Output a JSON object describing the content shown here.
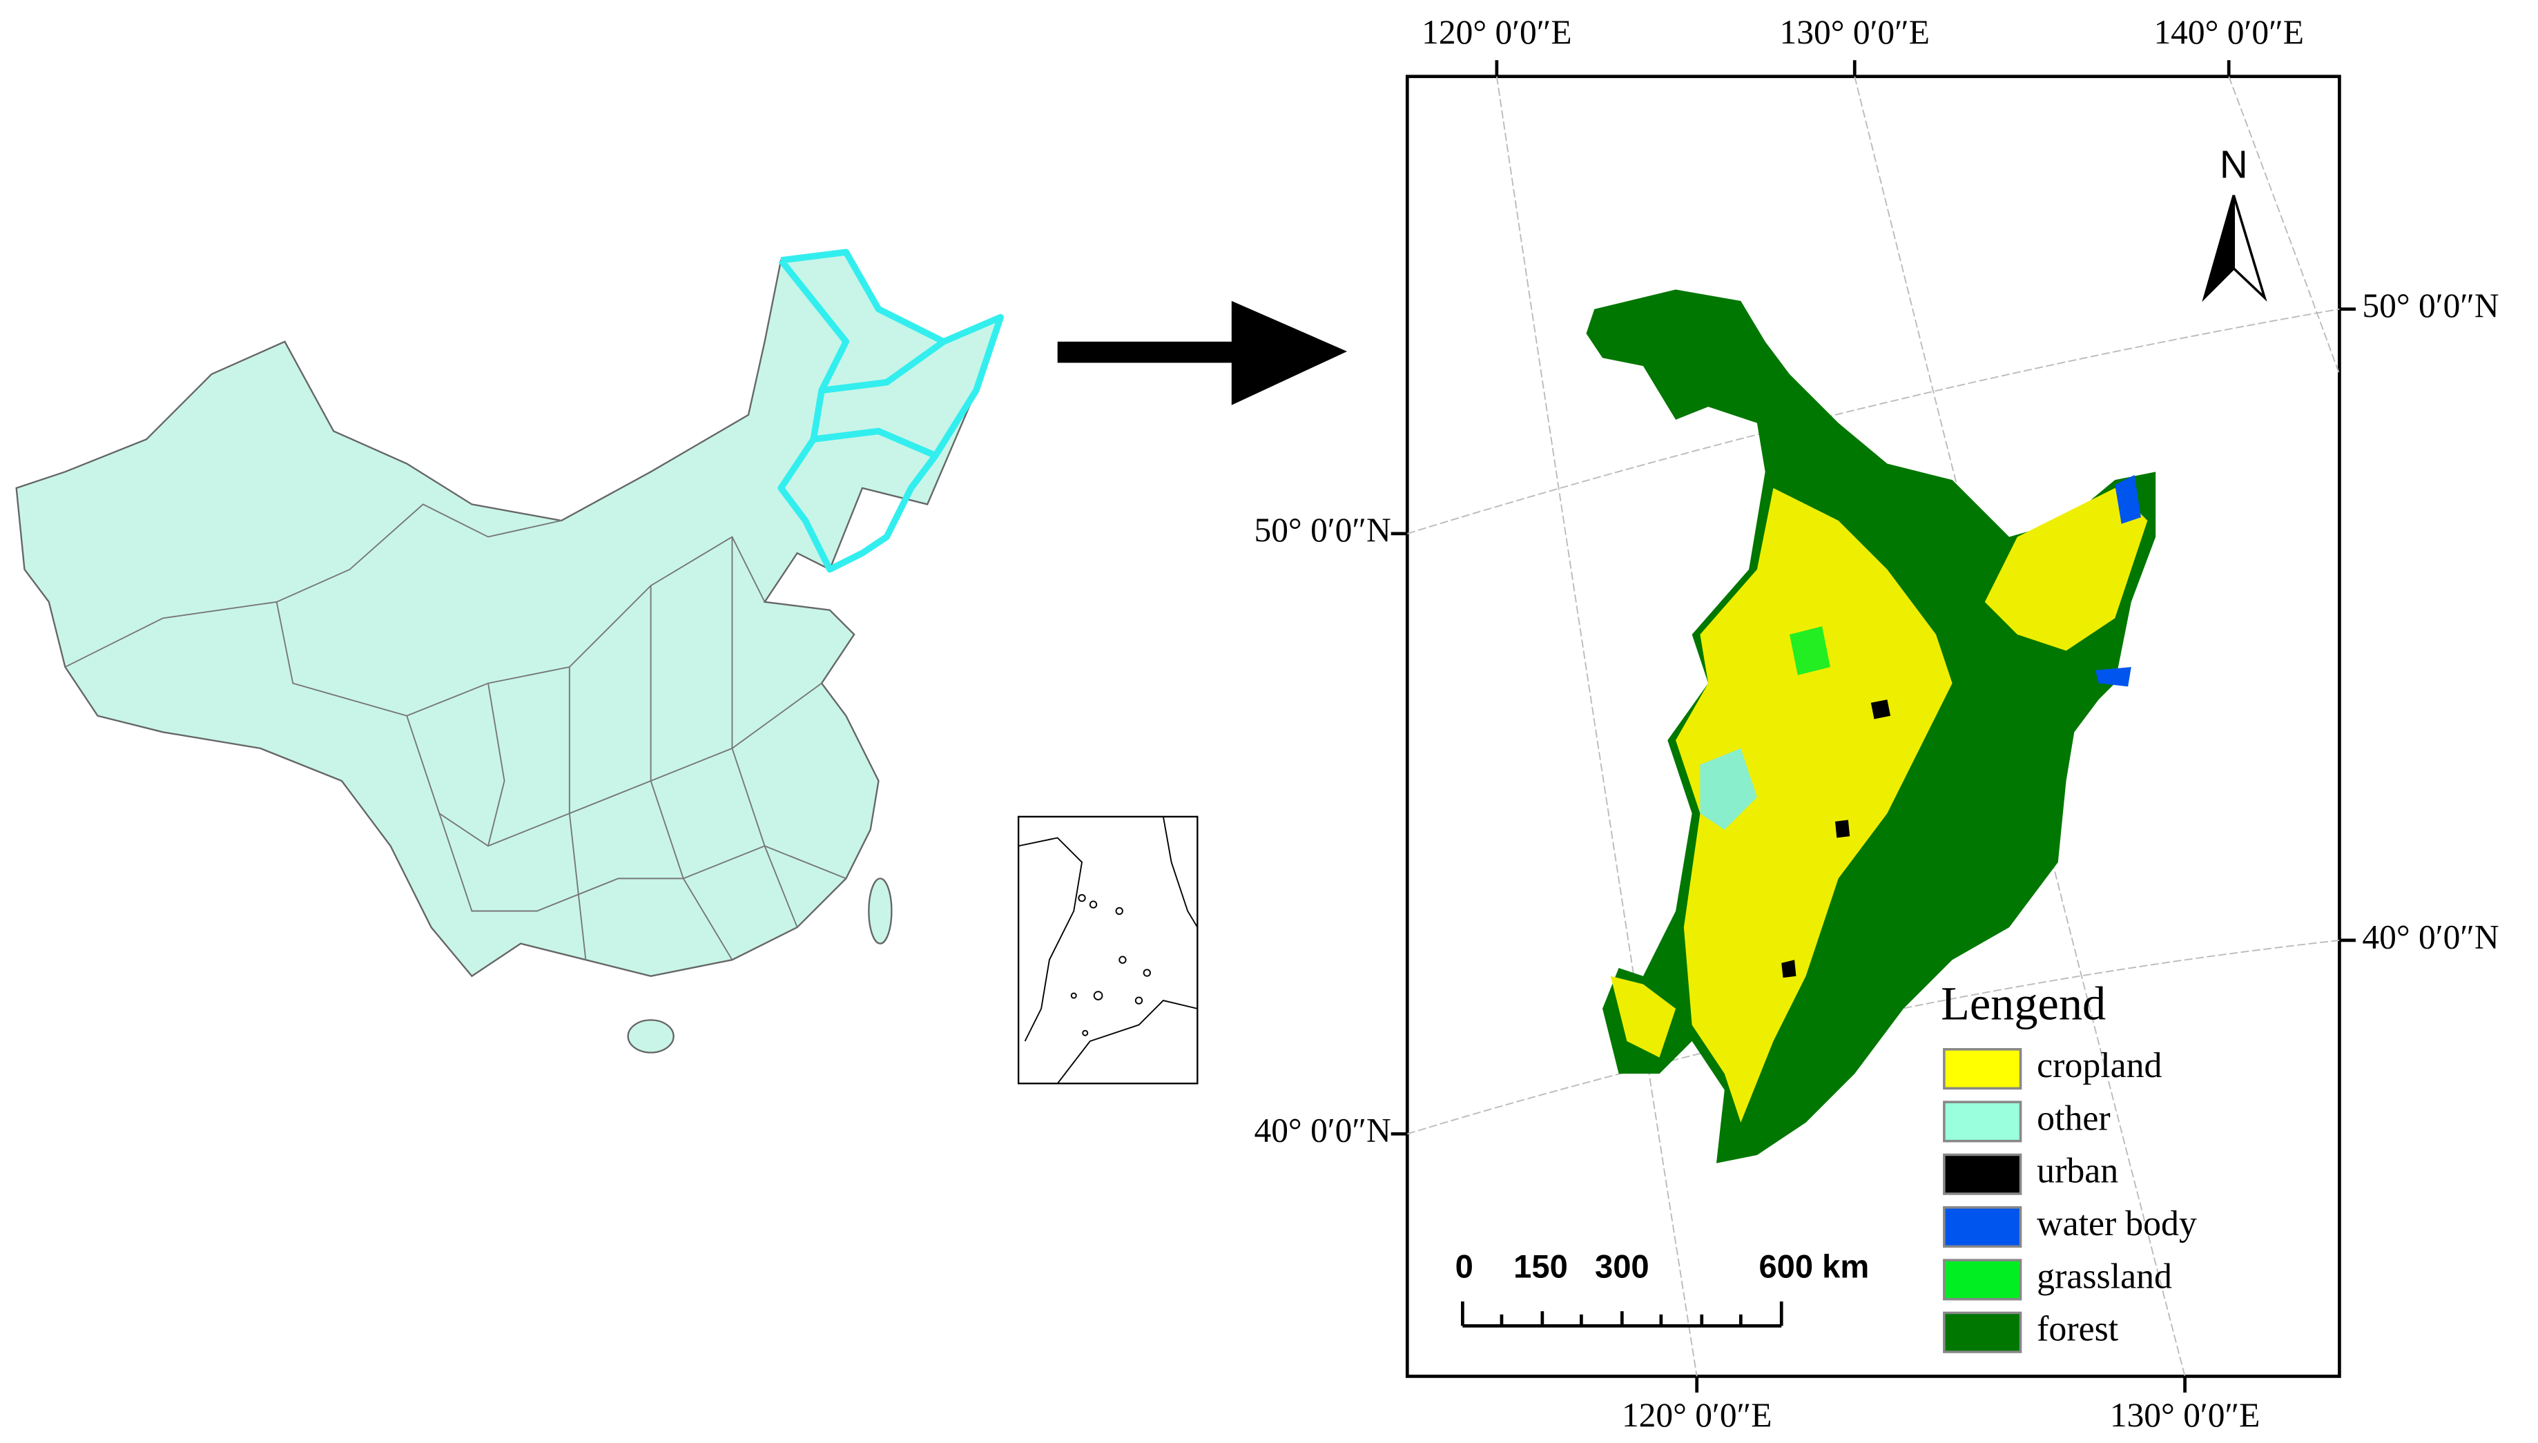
{
  "top_labels": [
    "120° 0′0″E",
    "130° 0′0″E",
    "140° 0′0″E"
  ],
  "bottom_labels": [
    "120° 0′0″E",
    "130° 0′0″E"
  ],
  "left_labels": [
    "50° 0′0″N",
    "40° 0′0″N"
  ],
  "right_labels": [
    "50° 0′0″N",
    "40° 0′0″N"
  ],
  "north_label": "N",
  "scale_bar": {
    "labels": [
      "0",
      "150",
      "300",
      "600 km"
    ]
  },
  "legend": {
    "title": "Lengend",
    "items": [
      {
        "name": "cropland",
        "color": "#ffff00"
      },
      {
        "name": "other",
        "color": "#99ffdd"
      },
      {
        "name": "urban",
        "color": "#000000"
      },
      {
        "name": "water body",
        "color": "#0055ee"
      },
      {
        "name": "grassland",
        "color": "#00ee22"
      },
      {
        "name": "forest",
        "color": "#007700"
      }
    ]
  }
}
